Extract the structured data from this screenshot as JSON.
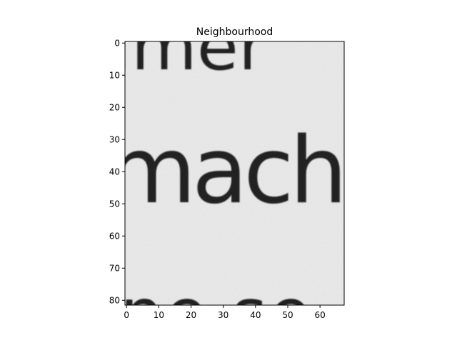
{
  "chart_data": {
    "type": "heatmap",
    "title": "Neighbourhood",
    "colormap": "gray",
    "xlabel": "",
    "ylabel": "",
    "xlim": [
      -0.5,
      67.5
    ],
    "ylim": [
      81.5,
      -0.5
    ],
    "x_ticks": [
      0,
      10,
      20,
      30,
      40,
      50,
      60
    ],
    "y_ticks": [
      0,
      10,
      20,
      30,
      40,
      50,
      60,
      70,
      80
    ],
    "x_tick_labels": [
      "0",
      "10",
      "20",
      "30",
      "40",
      "50",
      "60"
    ],
    "y_tick_labels": [
      "0",
      "10",
      "20",
      "30",
      "40",
      "50",
      "60",
      "70",
      "80"
    ],
    "grid": false,
    "image_text_rows": [
      {
        "text": "imer",
        "y_range": [
          -0.5,
          9
        ]
      },
      {
        "text": "machi",
        "y_range": [
          22,
          50
        ]
      },
      {
        "text": "ne se",
        "y_range": [
          73,
          81.5
        ]
      }
    ],
    "background_intensity": 0.94,
    "ink_intensity": 0.12
  }
}
